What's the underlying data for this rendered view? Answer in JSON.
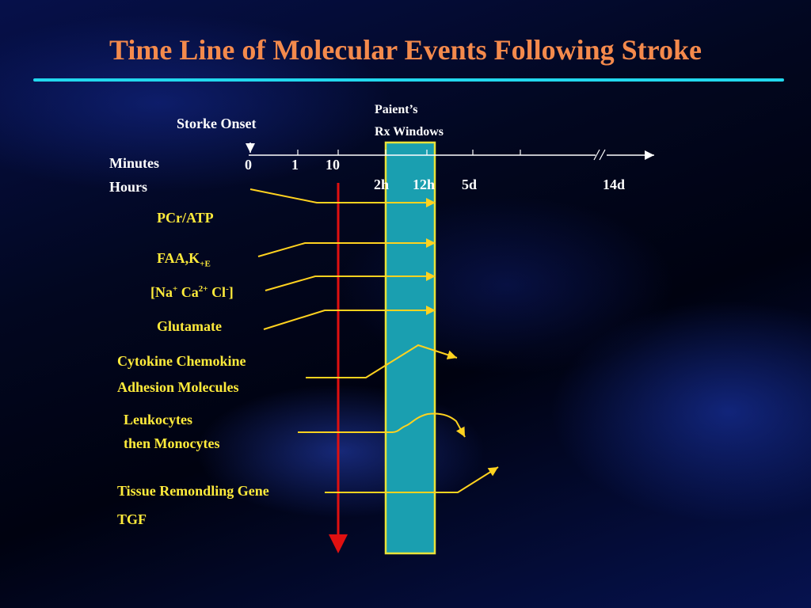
{
  "slide": {
    "title": "Time Line of Molecular Events Following Stroke"
  },
  "timeline": {
    "onset_label": "Storke Onset",
    "window_label_1": "Paient’s",
    "window_label_2": "Rx Windows",
    "row_minutes": "Minutes",
    "row_hours": "Hours",
    "minute_ticks": [
      "0",
      "1",
      "10"
    ],
    "hour_ticks": [
      "2h",
      "12h",
      "5d",
      "14d"
    ],
    "break_mark": "//"
  },
  "events": {
    "pcr": "PCr/ATP",
    "faa_main": "FAA,K",
    "faa_sub": "+E",
    "ions_open": "[Na",
    "ions_na_sup": "+",
    "ions_ca": " Ca",
    "ions_ca_sup": "2+",
    "ions_cl": " Cl",
    "ions_cl_sup": "-",
    "ions_close": "]",
    "glutamate": "Glutamate",
    "cytokine_1": "Cytokine Chemokine",
    "cytokine_2": "Adhesion Molecules",
    "leuko_1": "Leukocytes",
    "leuko_2": "then Monocytes",
    "tissue_1": "Tissue Remondling Gene",
    "tissue_2": "TGF"
  },
  "colors": {
    "title": "#f48a4c",
    "rule": "#22d8ee",
    "event_lines": "#ffd21f",
    "red_arrow": "#e01010",
    "window_fill": "#1a9fb0",
    "window_border": "#e8e23a"
  }
}
